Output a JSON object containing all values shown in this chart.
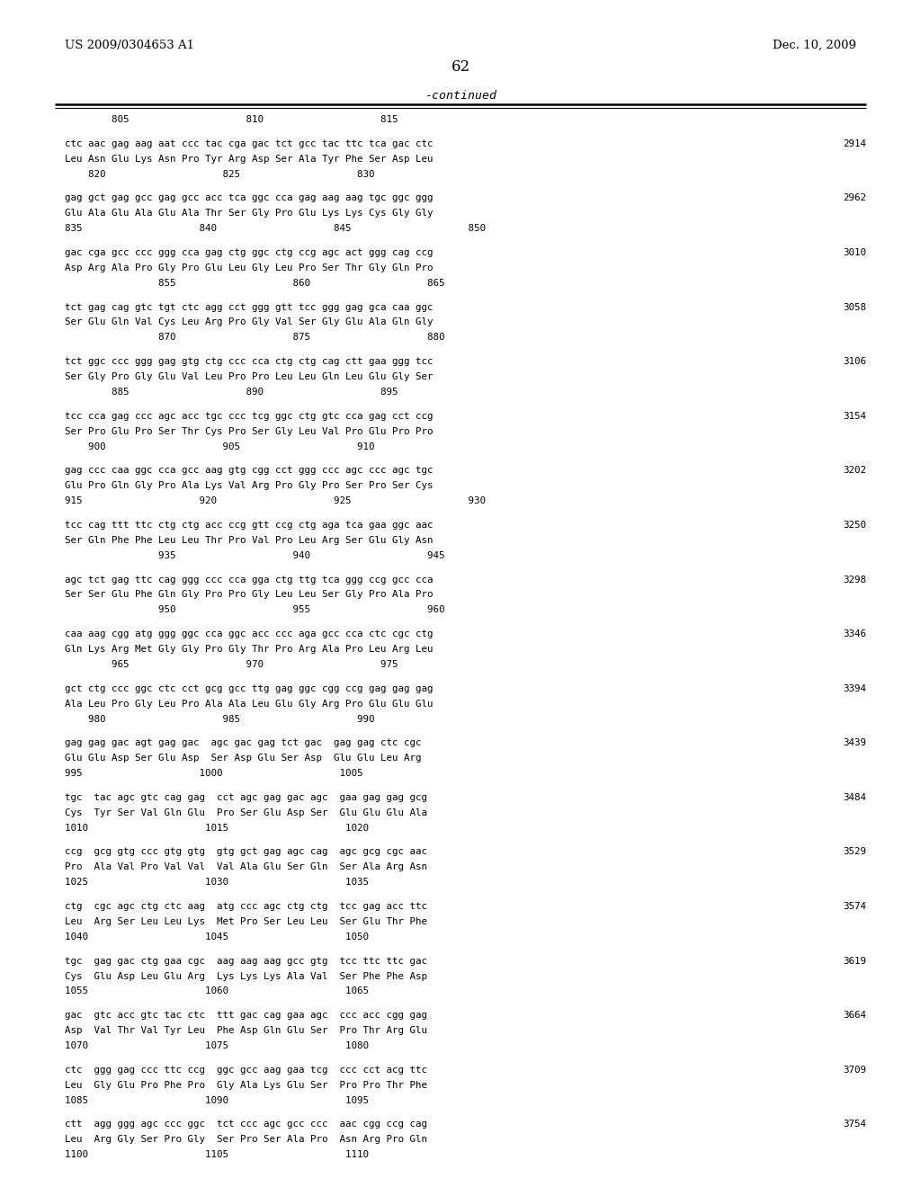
{
  "header_left": "US 2009/0304653 A1",
  "header_right": "Dec. 10, 2009",
  "page_number": "62",
  "continued_label": "-continued",
  "background_color": "#ffffff",
  "text_color": "#000000",
  "content": [
    {
      "type": "ruler_labels",
      "text": "        805                    810                    815"
    },
    {
      "type": "blank"
    },
    {
      "type": "code",
      "text": "ctc aac gag aag aat ccc tac cga gac tct gcc tac ttc tca gac ctc",
      "num": "2914"
    },
    {
      "type": "amino",
      "text": "Leu Asn Glu Lys Asn Pro Tyr Arg Asp Ser Ala Tyr Phe Ser Asp Leu"
    },
    {
      "type": "ruler",
      "text": "    820                    825                    830"
    },
    {
      "type": "blank"
    },
    {
      "type": "code",
      "text": "gag gct gag gcc gag gcc acc tca ggc cca gag aag aag tgc ggc ggg",
      "num": "2962"
    },
    {
      "type": "amino",
      "text": "Glu Ala Glu Ala Glu Ala Thr Ser Gly Pro Glu Lys Lys Cys Gly Gly"
    },
    {
      "type": "ruler",
      "text": "835                    840                    845                    850"
    },
    {
      "type": "blank"
    },
    {
      "type": "code",
      "text": "gac cga gcc ccc ggg cca gag ctg ggc ctg ccg agc act ggg cag ccg",
      "num": "3010"
    },
    {
      "type": "amino",
      "text": "Asp Arg Ala Pro Gly Pro Glu Leu Gly Leu Pro Ser Thr Gly Gln Pro"
    },
    {
      "type": "ruler",
      "text": "                855                    860                    865"
    },
    {
      "type": "blank"
    },
    {
      "type": "code",
      "text": "tct gag cag gtc tgt ctc agg cct ggg gtt tcc ggg gag gca caa ggc",
      "num": "3058"
    },
    {
      "type": "amino",
      "text": "Ser Glu Gln Val Cys Leu Arg Pro Gly Val Ser Gly Glu Ala Gln Gly"
    },
    {
      "type": "ruler",
      "text": "                870                    875                    880"
    },
    {
      "type": "blank"
    },
    {
      "type": "code",
      "text": "tct ggc ccc ggg gag gtg ctg ccc cca ctg ctg cag ctt gaa ggg tcc",
      "num": "3106"
    },
    {
      "type": "amino",
      "text": "Ser Gly Pro Gly Glu Val Leu Pro Pro Leu Leu Gln Leu Glu Gly Ser"
    },
    {
      "type": "ruler",
      "text": "        885                    890                    895"
    },
    {
      "type": "blank"
    },
    {
      "type": "code",
      "text": "tcc cca gag ccc agc acc tgc ccc tcg ggc ctg gtc cca gag cct ccg",
      "num": "3154"
    },
    {
      "type": "amino",
      "text": "Ser Pro Glu Pro Ser Thr Cys Pro Ser Gly Leu Val Pro Glu Pro Pro"
    },
    {
      "type": "ruler",
      "text": "    900                    905                    910"
    },
    {
      "type": "blank"
    },
    {
      "type": "code",
      "text": "gag ccc caa ggc cca gcc aag gtg cgg cct ggg ccc agc ccc agc tgc",
      "num": "3202"
    },
    {
      "type": "amino",
      "text": "Glu Pro Gln Gly Pro Ala Lys Val Arg Pro Gly Pro Ser Pro Ser Cys"
    },
    {
      "type": "ruler",
      "text": "915                    920                    925                    930"
    },
    {
      "type": "blank"
    },
    {
      "type": "code",
      "text": "tcc cag ttt ttc ctg ctg acc ccg gtt ccg ctg aga tca gaa ggc aac",
      "num": "3250"
    },
    {
      "type": "amino",
      "text": "Ser Gln Phe Phe Leu Leu Thr Pro Val Pro Leu Arg Ser Glu Gly Asn"
    },
    {
      "type": "ruler",
      "text": "                935                    940                    945"
    },
    {
      "type": "blank"
    },
    {
      "type": "code",
      "text": "agc tct gag ttc cag ggg ccc cca gga ctg ttg tca ggg ccg gcc cca",
      "num": "3298"
    },
    {
      "type": "amino",
      "text": "Ser Ser Glu Phe Gln Gly Pro Pro Gly Leu Leu Ser Gly Pro Ala Pro"
    },
    {
      "type": "ruler",
      "text": "                950                    955                    960"
    },
    {
      "type": "blank"
    },
    {
      "type": "code",
      "text": "caa aag cgg atg ggg ggc cca ggc acc ccc aga gcc cca ctc cgc ctg",
      "num": "3346"
    },
    {
      "type": "amino",
      "text": "Gln Lys Arg Met Gly Gly Pro Gly Thr Pro Arg Ala Pro Leu Arg Leu"
    },
    {
      "type": "ruler",
      "text": "        965                    970                    975"
    },
    {
      "type": "blank"
    },
    {
      "type": "code",
      "text": "gct ctg ccc ggc ctc cct gcg gcc ttg gag ggc cgg ccg gag gag gag",
      "num": "3394"
    },
    {
      "type": "amino",
      "text": "Ala Leu Pro Gly Leu Pro Ala Ala Leu Glu Gly Arg Pro Glu Glu Glu"
    },
    {
      "type": "ruler",
      "text": "    980                    985                    990"
    },
    {
      "type": "blank"
    },
    {
      "type": "code",
      "text": "gag gag gac agt gag gac  agc gac gag tct gac  gag gag ctc cgc",
      "num": "3439"
    },
    {
      "type": "amino",
      "text": "Glu Glu Asp Ser Glu Asp  Ser Asp Glu Ser Asp  Glu Glu Leu Arg"
    },
    {
      "type": "ruler",
      "text": "995                    1000                    1005"
    },
    {
      "type": "blank"
    },
    {
      "type": "code",
      "text": "tgc  tac agc gtc cag gag  cct agc gag gac agc  gaa gag gag gcg",
      "num": "3484"
    },
    {
      "type": "amino",
      "text": "Cys  Tyr Ser Val Gln Glu  Pro Ser Glu Asp Ser  Glu Glu Glu Ala"
    },
    {
      "type": "ruler",
      "text": "1010                    1015                    1020"
    },
    {
      "type": "blank"
    },
    {
      "type": "code",
      "text": "ccg  gcg gtg ccc gtg gtg  gtg gct gag agc cag  agc gcg cgc aac",
      "num": "3529"
    },
    {
      "type": "amino",
      "text": "Pro  Ala Val Pro Val Val  Val Ala Glu Ser Gln  Ser Ala Arg Asn"
    },
    {
      "type": "ruler",
      "text": "1025                    1030                    1035"
    },
    {
      "type": "blank"
    },
    {
      "type": "code",
      "text": "ctg  cgc agc ctg ctc aag  atg ccc agc ctg ctg  tcc gag acc ttc",
      "num": "3574"
    },
    {
      "type": "amino",
      "text": "Leu  Arg Ser Leu Leu Lys  Met Pro Ser Leu Leu  Ser Glu Thr Phe"
    },
    {
      "type": "ruler",
      "text": "1040                    1045                    1050"
    },
    {
      "type": "blank"
    },
    {
      "type": "code",
      "text": "tgc  gag gac ctg gaa cgc  aag aag aag gcc gtg  tcc ttc ttc gac",
      "num": "3619"
    },
    {
      "type": "amino",
      "text": "Cys  Glu Asp Leu Glu Arg  Lys Lys Lys Ala Val  Ser Phe Phe Asp"
    },
    {
      "type": "ruler",
      "text": "1055                    1060                    1065"
    },
    {
      "type": "blank"
    },
    {
      "type": "code",
      "text": "gac  gtc acc gtc tac ctc  ttt gac cag gaa agc  ccc acc cgg gag",
      "num": "3664"
    },
    {
      "type": "amino",
      "text": "Asp  Val Thr Val Tyr Leu  Phe Asp Gln Glu Ser  Pro Thr Arg Glu"
    },
    {
      "type": "ruler",
      "text": "1070                    1075                    1080"
    },
    {
      "type": "blank"
    },
    {
      "type": "code",
      "text": "ctc  ggg gag ccc ttc ccg  ggc gcc aag gaa tcg  ccc cct acg ttc",
      "num": "3709"
    },
    {
      "type": "amino",
      "text": "Leu  Gly Glu Pro Phe Pro  Gly Ala Lys Glu Ser  Pro Pro Thr Phe"
    },
    {
      "type": "ruler",
      "text": "1085                    1090                    1095"
    },
    {
      "type": "blank"
    },
    {
      "type": "code",
      "text": "ctt  agg ggg agc ccc ggc  tct ccc agc gcc ccc  aac cgg ccg cag",
      "num": "3754"
    },
    {
      "type": "amino",
      "text": "Leu  Arg Gly Ser Pro Gly  Ser Pro Ser Ala Pro  Asn Arg Pro Gln"
    },
    {
      "type": "ruler",
      "text": "1100                    1105                    1110"
    }
  ]
}
